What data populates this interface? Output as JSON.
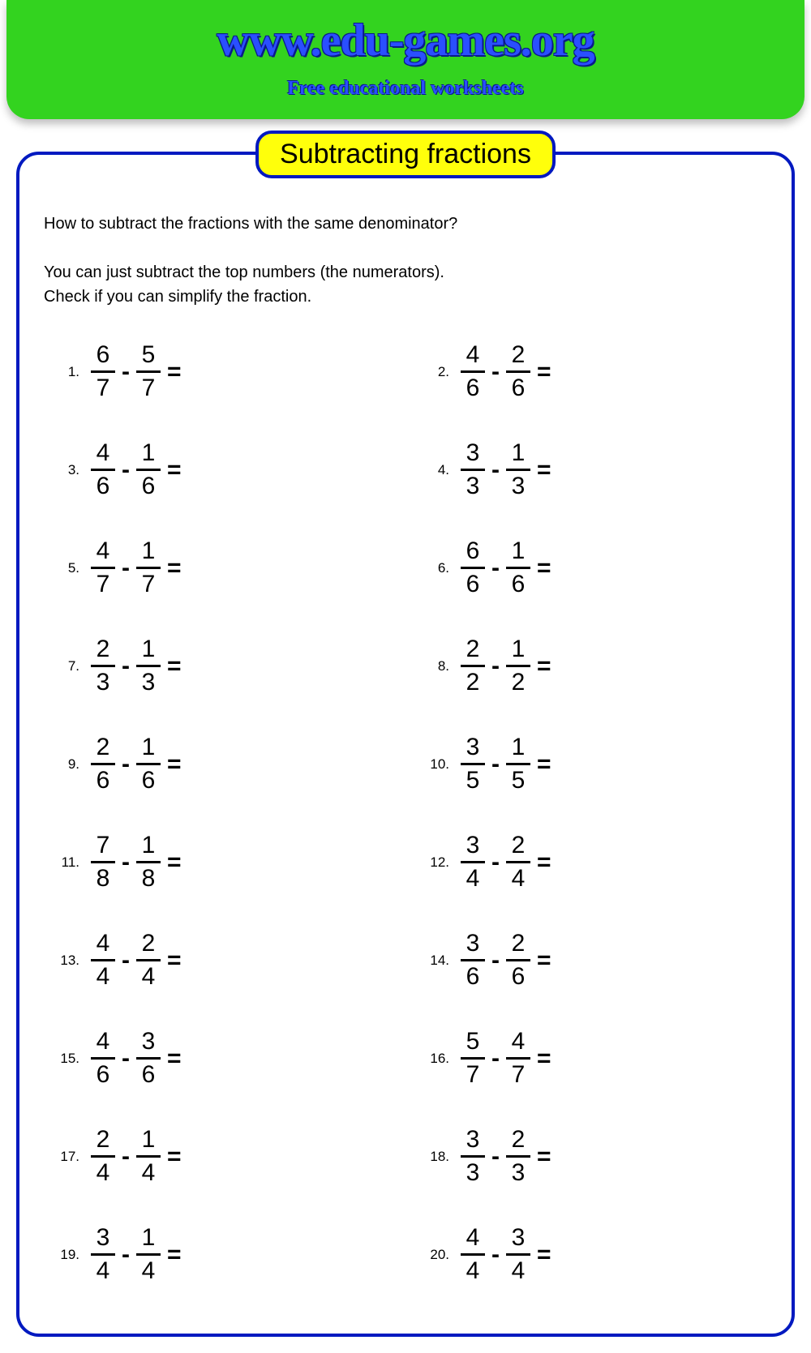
{
  "header": {
    "site_url": "www.edu-games.org",
    "tagline": "Free educational worksheets",
    "background_color": "#33d31f",
    "text_color": "#2a4fff"
  },
  "worksheet": {
    "title": "Subtracting fractions",
    "title_bg": "#ffff0b",
    "border_color": "#0019c0",
    "instructions_line1": "How to subtract the fractions with the same denominator?",
    "instructions_line2": "You can just subtract the top numbers (the numerators).",
    "instructions_line3": "Check if you can simplify the fraction.",
    "number_fontsize": 17,
    "fraction_fontsize": 30,
    "operator": "-",
    "equals": "=",
    "problems": [
      {
        "n": "1.",
        "a_num": "6",
        "a_den": "7",
        "b_num": "5",
        "b_den": "7"
      },
      {
        "n": "2.",
        "a_num": "4",
        "a_den": "6",
        "b_num": "2",
        "b_den": "6"
      },
      {
        "n": "3.",
        "a_num": "4",
        "a_den": "6",
        "b_num": "1",
        "b_den": "6"
      },
      {
        "n": "4.",
        "a_num": "3",
        "a_den": "3",
        "b_num": "1",
        "b_den": "3"
      },
      {
        "n": "5.",
        "a_num": "4",
        "a_den": "7",
        "b_num": "1",
        "b_den": "7"
      },
      {
        "n": "6.",
        "a_num": "6",
        "a_den": "6",
        "b_num": "1",
        "b_den": "6"
      },
      {
        "n": "7.",
        "a_num": "2",
        "a_den": "3",
        "b_num": "1",
        "b_den": "3"
      },
      {
        "n": "8.",
        "a_num": "2",
        "a_den": "2",
        "b_num": "1",
        "b_den": "2"
      },
      {
        "n": "9.",
        "a_num": "2",
        "a_den": "6",
        "b_num": "1",
        "b_den": "6"
      },
      {
        "n": "10.",
        "a_num": "3",
        "a_den": "5",
        "b_num": "1",
        "b_den": "5"
      },
      {
        "n": "11.",
        "a_num": "7",
        "a_den": "8",
        "b_num": "1",
        "b_den": "8"
      },
      {
        "n": "12.",
        "a_num": "3",
        "a_den": "4",
        "b_num": "2",
        "b_den": "4"
      },
      {
        "n": "13.",
        "a_num": "4",
        "a_den": "4",
        "b_num": "2",
        "b_den": "4"
      },
      {
        "n": "14.",
        "a_num": "3",
        "a_den": "6",
        "b_num": "2",
        "b_den": "6"
      },
      {
        "n": "15.",
        "a_num": "4",
        "a_den": "6",
        "b_num": "3",
        "b_den": "6"
      },
      {
        "n": "16.",
        "a_num": "5",
        "a_den": "7",
        "b_num": "4",
        "b_den": "7"
      },
      {
        "n": "17.",
        "a_num": "2",
        "a_den": "4",
        "b_num": "1",
        "b_den": "4"
      },
      {
        "n": "18.",
        "a_num": "3",
        "a_den": "3",
        "b_num": "2",
        "b_den": "3"
      },
      {
        "n": "19.",
        "a_num": "3",
        "a_den": "4",
        "b_num": "1",
        "b_den": "4"
      },
      {
        "n": "20.",
        "a_num": "4",
        "a_den": "4",
        "b_num": "3",
        "b_den": "4"
      }
    ]
  }
}
